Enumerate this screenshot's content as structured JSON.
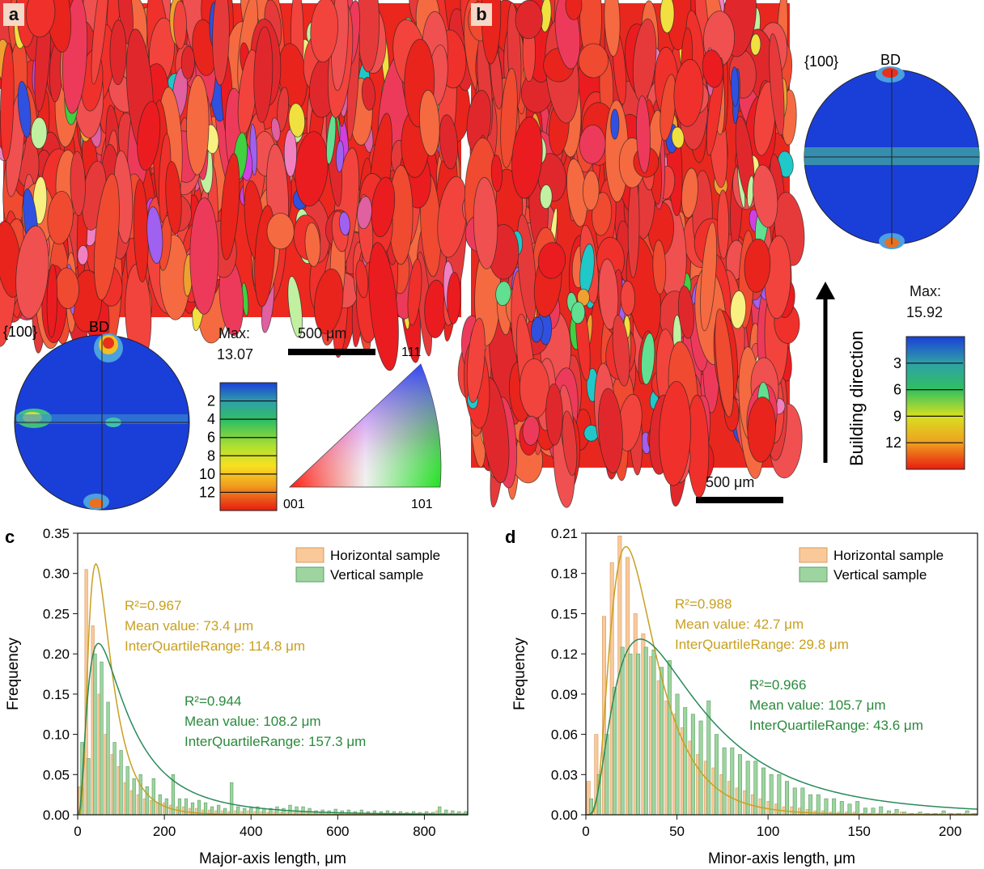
{
  "panel_a": {
    "tag": "a",
    "pole_figure": {
      "plane": "{100}",
      "axis": "BD",
      "max_label": "Max:",
      "max_value": "13.07",
      "scale_ticks": [
        "2",
        "4",
        "6",
        "8",
        "10",
        "12"
      ]
    },
    "scale_bar": "500 μm",
    "ipf": {
      "top": "111",
      "bottom_left": "001",
      "bottom_right": "101"
    }
  },
  "panel_b": {
    "tag": "b",
    "pole_figure": {
      "plane": "{100}",
      "axis": "BD",
      "max_label": "Max:",
      "max_value": "15.92",
      "scale_ticks": [
        "3",
        "6",
        "9",
        "12"
      ]
    },
    "scale_bar": "500 μm",
    "arrow_label": "Building direction"
  },
  "colors": {
    "horizontal_fill": "#f9c99a",
    "vertical_fill": "#9ed4a0",
    "horizontal_text": "#c8a020",
    "vertical_text": "#2a8a3c",
    "map_red": "#e8241c",
    "pf_blue": "#1a3fd8"
  },
  "chart_data": [
    {
      "type": "bar",
      "panel": "c",
      "xlabel": "Major-axis length, μm",
      "ylabel": "Frequency",
      "xlim": [
        0,
        900
      ],
      "ylim": [
        0,
        0.35
      ],
      "xticks": [
        "0",
        "200",
        "400",
        "600",
        "800"
      ],
      "yticks": [
        "0.00",
        "0.05",
        "0.10",
        "0.15",
        "0.20",
        "0.25",
        "0.30",
        "0.35"
      ],
      "bin_width": 15,
      "legend": [
        "Horizontal sample",
        "Vertical sample"
      ],
      "series": [
        {
          "name": "Horizontal sample",
          "values": [
            0.035,
            0.305,
            0.235,
            0.15,
            0.1,
            0.075,
            0.06,
            0.04,
            0.03,
            0.025,
            0.02,
            0.018,
            0.015,
            0.015,
            0.012,
            0.01,
            0.01,
            0.008,
            0.008,
            0.006,
            0.006,
            0.005,
            0.005,
            0.004,
            0.005,
            0.004,
            0.005,
            0.004,
            0.004,
            0.003,
            0.004,
            0.003,
            0.003,
            0.003,
            0.004,
            0.003,
            0.003,
            0.002,
            0.003,
            0.003,
            0.002,
            0.002,
            0.002,
            0.002,
            0.002,
            0.002,
            0.002,
            0.002,
            0.002,
            0.002,
            0.002,
            0.002,
            0.002,
            0.002,
            0.002,
            0.005,
            0.002,
            0.002,
            0.002,
            0.002
          ]
        },
        {
          "name": "Vertical sample",
          "values": [
            0.09,
            0.07,
            0.2,
            0.19,
            0.14,
            0.09,
            0.08,
            0.06,
            0.045,
            0.05,
            0.035,
            0.045,
            0.025,
            0.02,
            0.05,
            0.02,
            0.02,
            0.015,
            0.018,
            0.015,
            0.01,
            0.012,
            0.008,
            0.04,
            0.01,
            0.008,
            0.01,
            0.01,
            0.008,
            0.008,
            0.01,
            0.008,
            0.012,
            0.01,
            0.01,
            0.008,
            0.005,
            0.006,
            0.005,
            0.007,
            0.005,
            0.006,
            0.004,
            0.006,
            0.004,
            0.005,
            0.004,
            0.005,
            0.004,
            0.004,
            0.003,
            0.004,
            0.003,
            0.004,
            0.003,
            0.01,
            0.006,
            0.005,
            0.004,
            0.004
          ]
        }
      ],
      "fits": [
        {
          "name": "Horizontal sample",
          "mode": 42,
          "peak": 0.312,
          "type": "lognormal",
          "sigma": 0.6
        },
        {
          "name": "Vertical sample",
          "mode": 48,
          "peak": 0.213,
          "type": "lognormal",
          "sigma": 0.85
        }
      ],
      "annotations": [
        {
          "series": "Horizontal sample",
          "lines": [
            "R²=0.967",
            "Mean value: 73.4 μm",
            "InterQuartileRange: 114.8 μm"
          ]
        },
        {
          "series": "Vertical sample",
          "lines": [
            "R²=0.944",
            "Mean value: 108.2 μm",
            "InterQuartileRange: 157.3 μm"
          ]
        }
      ]
    },
    {
      "type": "bar",
      "panel": "d",
      "xlabel": "Minor-axis length, μm",
      "ylabel": "Frequency",
      "xlim": [
        0,
        215
      ],
      "ylim": [
        0,
        0.21
      ],
      "xticks": [
        "0",
        "50",
        "100",
        "150",
        "200"
      ],
      "yticks": [
        "0.00",
        "0.03",
        "0.06",
        "0.09",
        "0.12",
        "0.15",
        "0.18",
        "0.21"
      ],
      "bin_width": 4.3,
      "legend": [
        "Horizontal sample",
        "Vertical sample"
      ],
      "series": [
        {
          "name": "Horizontal sample",
          "values": [
            0.025,
            0.06,
            0.148,
            0.188,
            0.208,
            0.192,
            0.15,
            0.135,
            0.118,
            0.1,
            0.085,
            0.075,
            0.065,
            0.055,
            0.045,
            0.04,
            0.035,
            0.03,
            0.025,
            0.02,
            0.018,
            0.015,
            0.012,
            0.01,
            0.008,
            0.006,
            0.006,
            0.005,
            0.004,
            0.003,
            0.003,
            0.002,
            0.002,
            0.002,
            0.002,
            0.001,
            0.001,
            0.001,
            0.001,
            0.001,
            0.002,
            0.001,
            0.001,
            0.001,
            0.001,
            0.001,
            0.001,
            0.001,
            0.001,
            0.001
          ]
        },
        {
          "name": "Vertical sample",
          "values": [
            0.012,
            0.03,
            0.06,
            0.095,
            0.125,
            0.12,
            0.12,
            0.125,
            0.123,
            0.11,
            0.115,
            0.09,
            0.08,
            0.075,
            0.07,
            0.085,
            0.06,
            0.05,
            0.05,
            0.045,
            0.04,
            0.04,
            0.035,
            0.03,
            0.03,
            0.025,
            0.02,
            0.02,
            0.015,
            0.015,
            0.012,
            0.012,
            0.01,
            0.008,
            0.01,
            0.005,
            0.005,
            0.006,
            0.003,
            0.004,
            0.002,
            0.001,
            0.002,
            0.001,
            0.001,
            0.003,
            0.001,
            0.001,
            0.003,
            0.001
          ]
        }
      ],
      "fits": [
        {
          "name": "Horizontal sample",
          "mode": 22,
          "peak": 0.2,
          "type": "lognormal",
          "sigma": 0.55
        },
        {
          "name": "Vertical sample",
          "mode": 30,
          "peak": 0.131,
          "type": "lognormal",
          "sigma": 0.75
        }
      ],
      "annotations": [
        {
          "series": "Horizontal sample",
          "lines": [
            "R²=0.988",
            "Mean value: 42.7 μm",
            "InterQuartileRange: 29.8 μm"
          ]
        },
        {
          "series": "Vertical sample",
          "lines": [
            "R²=0.966",
            "Mean value: 105.7 μm",
            "InterQuartileRange: 43.6 μm"
          ]
        }
      ]
    }
  ]
}
